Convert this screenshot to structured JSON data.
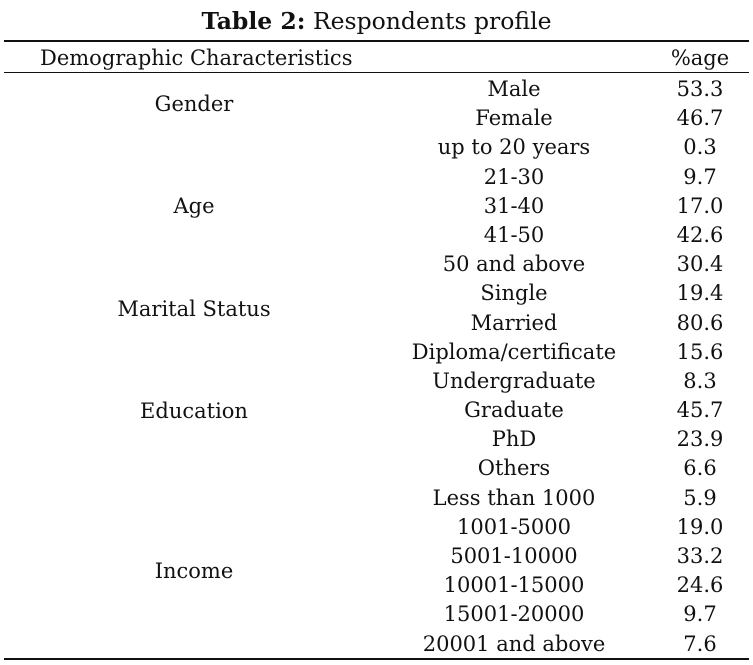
{
  "caption": {
    "label": "Table 2:",
    "text": "Respondents profile"
  },
  "header": {
    "characteristic": "Demographic Characteristics",
    "percent": "%age"
  },
  "groups": [
    {
      "name": "Gender",
      "rows": [
        {
          "category": "Male",
          "value": "53.3"
        },
        {
          "category": "Female",
          "value": "46.7"
        }
      ]
    },
    {
      "name": "Age",
      "rows": [
        {
          "category": "up to 20 years",
          "value": "0.3"
        },
        {
          "category": "21-30",
          "value": "9.7"
        },
        {
          "category": "31-40",
          "value": "17.0"
        },
        {
          "category": "41-50",
          "value": "42.6"
        },
        {
          "category": "50 and above",
          "value": "30.4"
        }
      ]
    },
    {
      "name": "Marital Status",
      "rows": [
        {
          "category": "Single",
          "value": "19.4"
        },
        {
          "category": "Married",
          "value": "80.6"
        }
      ]
    },
    {
      "name": "Education",
      "rows": [
        {
          "category": "Diploma/certificate",
          "value": "15.6"
        },
        {
          "category": "Undergraduate",
          "value": "8.3"
        },
        {
          "category": "Graduate",
          "value": "45.7"
        },
        {
          "category": "PhD",
          "value": "23.9"
        },
        {
          "category": "Others",
          "value": "6.6"
        }
      ]
    },
    {
      "name": "Income",
      "rows": [
        {
          "category": "Less than 1000",
          "value": "5.9"
        },
        {
          "category": "1001-5000",
          "value": "19.0"
        },
        {
          "category": "5001-10000",
          "value": "33.2"
        },
        {
          "category": "10001-15000",
          "value": "24.6"
        },
        {
          "category": "15001-20000",
          "value": "9.7"
        },
        {
          "category": "20001 and above",
          "value": "7.6"
        }
      ]
    }
  ]
}
